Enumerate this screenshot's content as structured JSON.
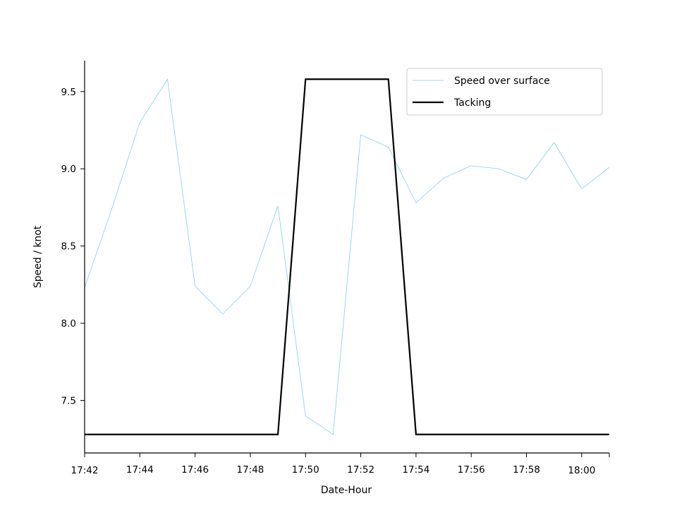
{
  "chart_data": {
    "type": "line",
    "title": "",
    "xlabel": "Date-Hour",
    "ylabel": "Speed / knot",
    "xlim": [
      "17:42",
      "18:01"
    ],
    "ylim": [
      7.16,
      9.7
    ],
    "x_ticks": [
      "17:42",
      "17:44",
      "17:46",
      "17:48",
      "17:50",
      "17:52",
      "17:54",
      "17:56",
      "17:58",
      "18:00"
    ],
    "y_ticks": [
      "7.5",
      "8.0",
      "8.5",
      "9.0",
      "9.5"
    ],
    "grid": false,
    "legend_position": "top-right",
    "series": [
      {
        "name": "Speed over surface",
        "color": "#87ceeb",
        "x": [
          "17:42",
          "17:43",
          "17:44",
          "17:45",
          "17:46",
          "17:47",
          "17:48",
          "17:49",
          "17:50",
          "17:51",
          "17:52",
          "17:53",
          "17:54",
          "17:55",
          "17:56",
          "17:57",
          "17:58",
          "17:59",
          "18:00",
          "18:01"
        ],
        "values": [
          8.23,
          8.75,
          9.3,
          9.58,
          8.24,
          8.06,
          8.24,
          8.76,
          7.4,
          7.28,
          9.22,
          9.14,
          8.78,
          8.94,
          9.02,
          9.0,
          8.93,
          9.17,
          8.87,
          9.01
        ]
      },
      {
        "name": "Tacking",
        "color": "#000000",
        "x": [
          "17:42",
          "17:43",
          "17:44",
          "17:45",
          "17:46",
          "17:47",
          "17:48",
          "17:49",
          "17:50",
          "17:51",
          "17:52",
          "17:53",
          "17:54",
          "17:55",
          "17:56",
          "17:57",
          "17:58",
          "17:59",
          "18:00",
          "18:01"
        ],
        "values": [
          7.28,
          7.28,
          7.28,
          7.28,
          7.28,
          7.28,
          7.28,
          7.28,
          9.58,
          9.58,
          9.58,
          9.58,
          7.28,
          7.28,
          7.28,
          7.28,
          7.28,
          7.28,
          7.28,
          7.28
        ]
      }
    ]
  }
}
